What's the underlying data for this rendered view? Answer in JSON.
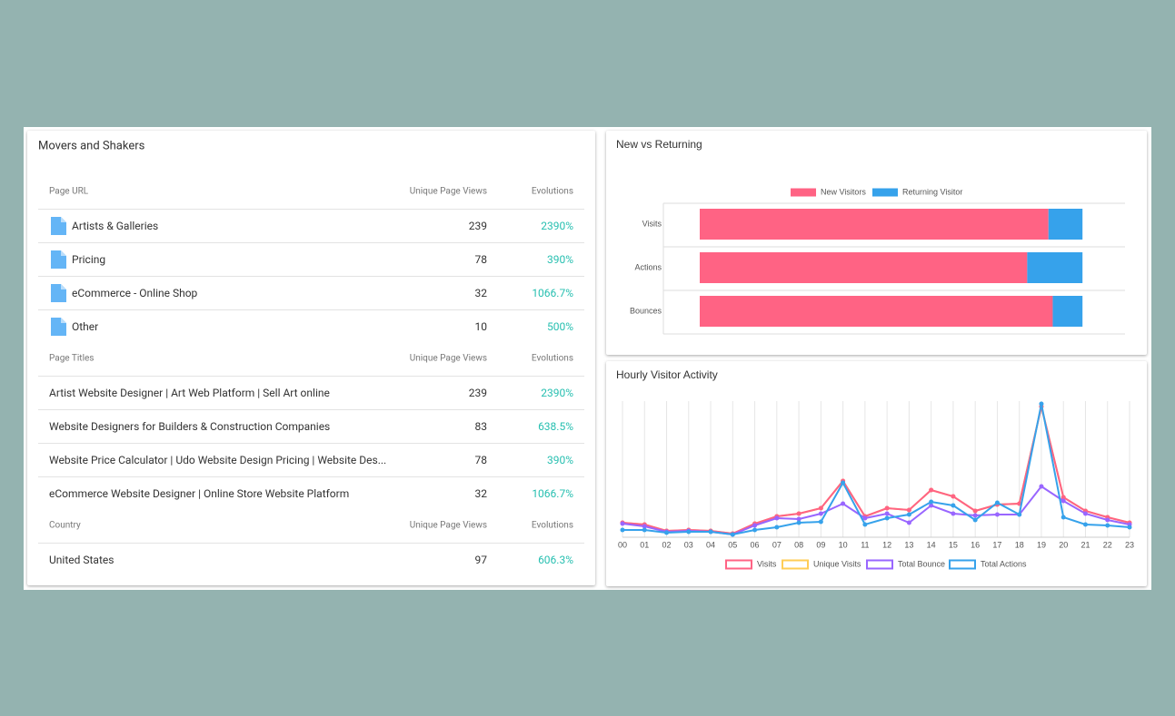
{
  "table": {
    "title": "Movers and Shakers",
    "sections": [
      {
        "headers": [
          "Page URL",
          "Unique Page Views",
          "Evolutions"
        ],
        "rows": [
          [
            "Artists & Galleries",
            239,
            "2390%"
          ],
          [
            "Pricing",
            78,
            "390%"
          ],
          [
            "eCommerce - Online Shop",
            32,
            "1066.7%"
          ],
          [
            "Other",
            10,
            "500%"
          ]
        ]
      },
      {
        "headers": [
          "Page Titles",
          "Unique Page Views",
          "Evolutions"
        ],
        "rows": [
          [
            "Artist Website Designer | Art Web Platform | Sell Art online",
            239,
            "2390%"
          ],
          [
            "Website Designers for Builders & Construction Companies",
            83,
            "638.5%"
          ],
          [
            "Website Price Calculator | Udo Website Design Pricing | Website Des...",
            78,
            "390%"
          ],
          [
            "eCommerce Website Designer | Online Store Website Platform",
            32,
            "1066.7%"
          ]
        ]
      },
      {
        "headers": [
          "Country",
          "Unique Page Views",
          "Evolutions"
        ],
        "rows": [
          [
            "United States",
            97,
            "606.3%"
          ]
        ]
      }
    ]
  },
  "chart_data": [
    {
      "type": "bar",
      "orientation": "horizontal",
      "stacked": true,
      "title": "New vs Returning",
      "categories": [
        "Visits",
        "Actions",
        "Bounces"
      ],
      "series": [
        {
          "name": "New Visitors",
          "color": "#ff6384",
          "values": [
            82,
            77,
            83
          ]
        },
        {
          "name": "Returning Visitor",
          "color": "#36a2eb",
          "values": [
            8,
            13,
            7
          ]
        }
      ],
      "xlim": [
        0,
        100
      ],
      "legend": "top"
    },
    {
      "type": "line",
      "title": "Hourly Visitor Activity",
      "categories": [
        "00",
        "01",
        "02",
        "03",
        "04",
        "05",
        "06",
        "07",
        "08",
        "09",
        "10",
        "11",
        "12",
        "13",
        "14",
        "15",
        "16",
        "17",
        "18",
        "19",
        "20",
        "21",
        "22",
        "23"
      ],
      "series": [
        {
          "name": "Visits",
          "color": "#ff6384",
          "values": [
            16,
            14,
            7,
            8,
            7,
            4,
            15,
            23,
            26,
            32,
            62,
            23,
            32,
            30,
            52,
            45,
            29,
            36,
            37,
            144,
            44,
            29,
            22,
            16
          ]
        },
        {
          "name": "Unique Visits",
          "color": "#ffcd56",
          "values": [
            16,
            14,
            7,
            8,
            7,
            4,
            15,
            23,
            26,
            32,
            62,
            23,
            32,
            30,
            52,
            45,
            29,
            36,
            37,
            144,
            44,
            29,
            22,
            16
          ]
        },
        {
          "name": "Total Bounce",
          "color": "#9966ff",
          "values": [
            15,
            12,
            6,
            7,
            6,
            3,
            13,
            21,
            20,
            26,
            37,
            21,
            26,
            16,
            35,
            26,
            24,
            25,
            25,
            56,
            40,
            26,
            19,
            14
          ]
        },
        {
          "name": "Total Actions",
          "color": "#36a2eb",
          "values": [
            8,
            8,
            5,
            6,
            6,
            3,
            8,
            11,
            16,
            17,
            60,
            14,
            21,
            25,
            39,
            35,
            19,
            38,
            25,
            147,
            22,
            14,
            13,
            11
          ]
        }
      ],
      "ylim": [
        0,
        150
      ],
      "grid": true,
      "legend": "bottom"
    }
  ]
}
